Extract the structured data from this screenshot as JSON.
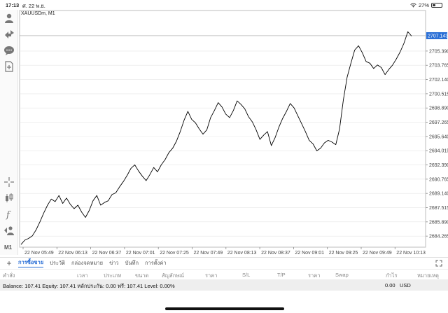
{
  "status_bar": {
    "time": "17:13",
    "date": "ศ. 22 พ.ย.",
    "battery": "27%",
    "battery_level": 0.27
  },
  "toolbar": {
    "icons": [
      "account-icon",
      "trade-icon",
      "chat-icon",
      "new-document-icon",
      "crosshair-icon",
      "candlestick-icon",
      "indicator-icon",
      "objects-icon"
    ],
    "timeframe": "M1"
  },
  "chart": {
    "symbol_title": "XAUUSDm, M1",
    "current_price": "2707.143",
    "colors": {
      "line": "#000000",
      "price_tag": "#2a6fd6",
      "grid": "#e6e6e6"
    }
  },
  "chart_data": {
    "type": "line",
    "title": "XAUUSDm, M1",
    "ylim": [
      2683.0,
      2708.5
    ],
    "y_ticks": [
      "2705.390",
      "2703.765",
      "2702.140",
      "2700.515",
      "2698.890",
      "2697.265",
      "2695.640",
      "2694.015",
      "2692.390",
      "2690.765",
      "2689.140",
      "2687.515",
      "2685.890",
      "2684.265"
    ],
    "x_ticks": [
      "22 Nov 05:49",
      "22 Nov 06:13",
      "22 Nov 06:37",
      "22 Nov 07:01",
      "22 Nov 07:25",
      "22 Nov 07:49",
      "22 Nov 08:13",
      "22 Nov 08:37",
      "22 Nov 09:01",
      "22 Nov 09:25",
      "22 Nov 09:49",
      "22 Nov 10:13"
    ],
    "series": [
      {
        "values": [
          2683.3,
          2683.8,
          2684.0,
          2684.3,
          2685.0,
          2685.9,
          2686.9,
          2687.8,
          2688.5,
          2688.2,
          2688.9,
          2688.0,
          2688.6,
          2687.9,
          2687.4,
          2687.8,
          2687.0,
          2686.4,
          2687.2,
          2688.3,
          2688.9,
          2687.8,
          2688.1,
          2688.3,
          2689.0,
          2689.2,
          2689.9,
          2690.5,
          2691.2,
          2692.0,
          2692.4,
          2691.7,
          2691.1,
          2690.6,
          2691.3,
          2692.1,
          2691.6,
          2692.4,
          2693.0,
          2693.8,
          2694.3,
          2695.1,
          2696.2,
          2697.5,
          2698.5,
          2697.6,
          2697.2,
          2696.5,
          2695.9,
          2696.4,
          2697.8,
          2698.6,
          2699.5,
          2699.0,
          2698.2,
          2697.8,
          2698.6,
          2699.7,
          2699.3,
          2698.8,
          2697.9,
          2697.3,
          2696.4,
          2695.3,
          2695.8,
          2696.2,
          2694.6,
          2695.5,
          2696.7,
          2697.7,
          2698.5,
          2699.4,
          2698.9,
          2698.0,
          2697.1,
          2696.2,
          2695.2,
          2694.8,
          2694.0,
          2694.3,
          2694.9,
          2695.2,
          2695.0,
          2694.7,
          2696.5,
          2699.8,
          2702.4,
          2704.0,
          2705.5,
          2706.0,
          2705.2,
          2704.2,
          2704.0,
          2703.4,
          2703.8,
          2703.5,
          2702.7,
          2703.3,
          2703.8,
          2704.5,
          2705.3,
          2706.3,
          2707.6,
          2707.1
        ]
      }
    ]
  },
  "tabs": {
    "items": [
      "การซื้อขาย",
      "ประวัติ",
      "กล่องจดหมาย",
      "ข่าว",
      "บันทึก",
      "การตั้งค่า"
    ],
    "active_index": 0
  },
  "columns": [
    "คำสั่ง",
    "เวลา",
    "ประเภท",
    "ขนาด",
    "สัญลักษณ์",
    "ราคา",
    "S/L",
    "T/P",
    "ราคา",
    "Swap",
    "กำไร",
    "หมายเหตุ"
  ],
  "balance": {
    "summary": "Balance: 107.41 Equity: 107.41 หลักประกัน: 0.00 ฟรี: 107.41 Level: 0.00%",
    "profit": "0.00",
    "currency": "USD"
  }
}
